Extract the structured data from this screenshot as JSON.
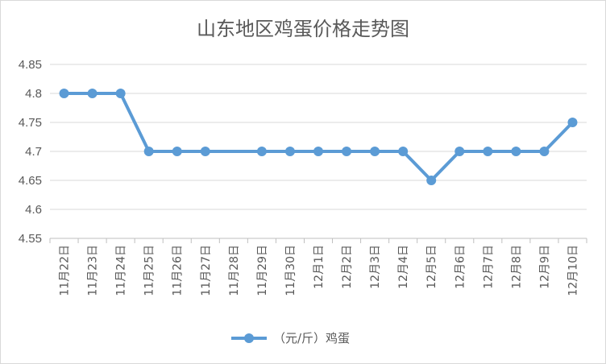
{
  "chart_data": {
    "type": "line",
    "title": "山东地区鸡蛋价格走势图",
    "xlabel": "",
    "ylabel": "",
    "categories": [
      "11月22日",
      "11月23日",
      "11月24日",
      "11月25日",
      "11月26日",
      "11月27日",
      "11月28日",
      "11月29日",
      "11月30日",
      "12月1日",
      "12月2日",
      "12月3日",
      "12月4日",
      "12月5日",
      "12月6日",
      "12月7日",
      "12月8日",
      "12月9日",
      "12月10日"
    ],
    "x_present": [
      true,
      true,
      true,
      true,
      true,
      true,
      false,
      true,
      true,
      true,
      true,
      true,
      true,
      true,
      true,
      true,
      true,
      true,
      true
    ],
    "series": [
      {
        "name": "（元/斤）鸡蛋",
        "color": "#5b9bd5",
        "values": [
          4.8,
          4.8,
          4.8,
          4.7,
          4.7,
          4.7,
          null,
          4.7,
          4.7,
          4.7,
          4.7,
          4.7,
          4.7,
          4.65,
          4.7,
          4.7,
          4.7,
          4.7,
          4.75
        ]
      }
    ],
    "ylim": [
      4.55,
      4.85
    ],
    "yticks": [
      "4.55",
      "4.6",
      "4.65",
      "4.7",
      "4.75",
      "4.8",
      "4.85"
    ],
    "grid": true,
    "legend": "bottom"
  }
}
